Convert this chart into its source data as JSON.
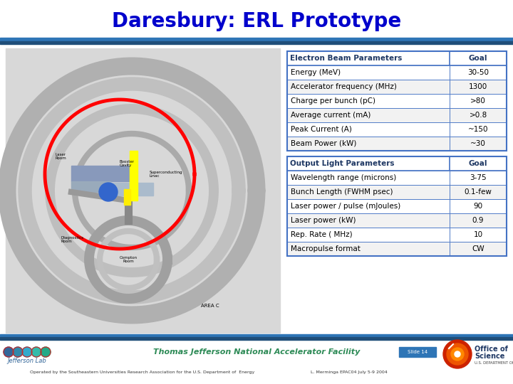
{
  "title": "Daresbury: ERL Prototype",
  "title_color": "#0000CC",
  "title_fontsize": 20,
  "bg_color": "#FFFFFF",
  "header_stripe_color": "#2E75B6",
  "header_stripe2_color": "#1F4E79",
  "table1_header": [
    "Electron Beam Parameters",
    "Goal"
  ],
  "table1_header_text_color": "#1F3864",
  "table1_rows": [
    [
      "Energy (MeV)",
      "30-50"
    ],
    [
      "Accelerator frequency (MHz)",
      "1300"
    ],
    [
      "Charge per bunch (pC)",
      ">80"
    ],
    [
      "Average current (mA)",
      ">0.8"
    ],
    [
      "Peak Current (A)",
      "~150"
    ],
    [
      "Beam Power (kW)",
      "~30"
    ]
  ],
  "table2_header": [
    "Output Light Parameters",
    "Goal"
  ],
  "table2_header_text_color": "#1F3864",
  "table2_rows": [
    [
      "Wavelength range (microns)",
      "3-75"
    ],
    [
      "Bunch Length (FWHM psec)",
      "0.1-few"
    ],
    [
      "Laser power / pulse (mJoules)",
      "90"
    ],
    [
      "Laser power (kW)",
      "0.9"
    ],
    [
      "Rep. Rate ( MHz)",
      "10"
    ],
    [
      "Macropulse format",
      "CW"
    ]
  ],
  "footer_center_text": "Thomas Jefferson National Accelerator Facility",
  "footer_center_color": "#2E8B57",
  "footer_left_text": "Operated by the Southeastern Universities Research Association for the U.S. Department of  Energy",
  "footer_right_text": "L. Merminga EPAC04 July 5-9 2004",
  "slide_number": "Slide 14",
  "table_border_color": "#4472C4",
  "table_row_alt_color": "#F2F2F2",
  "table_row_color": "#FFFFFF",
  "table_font_size": 7.5,
  "table_header_bg": "#FFFFFF"
}
